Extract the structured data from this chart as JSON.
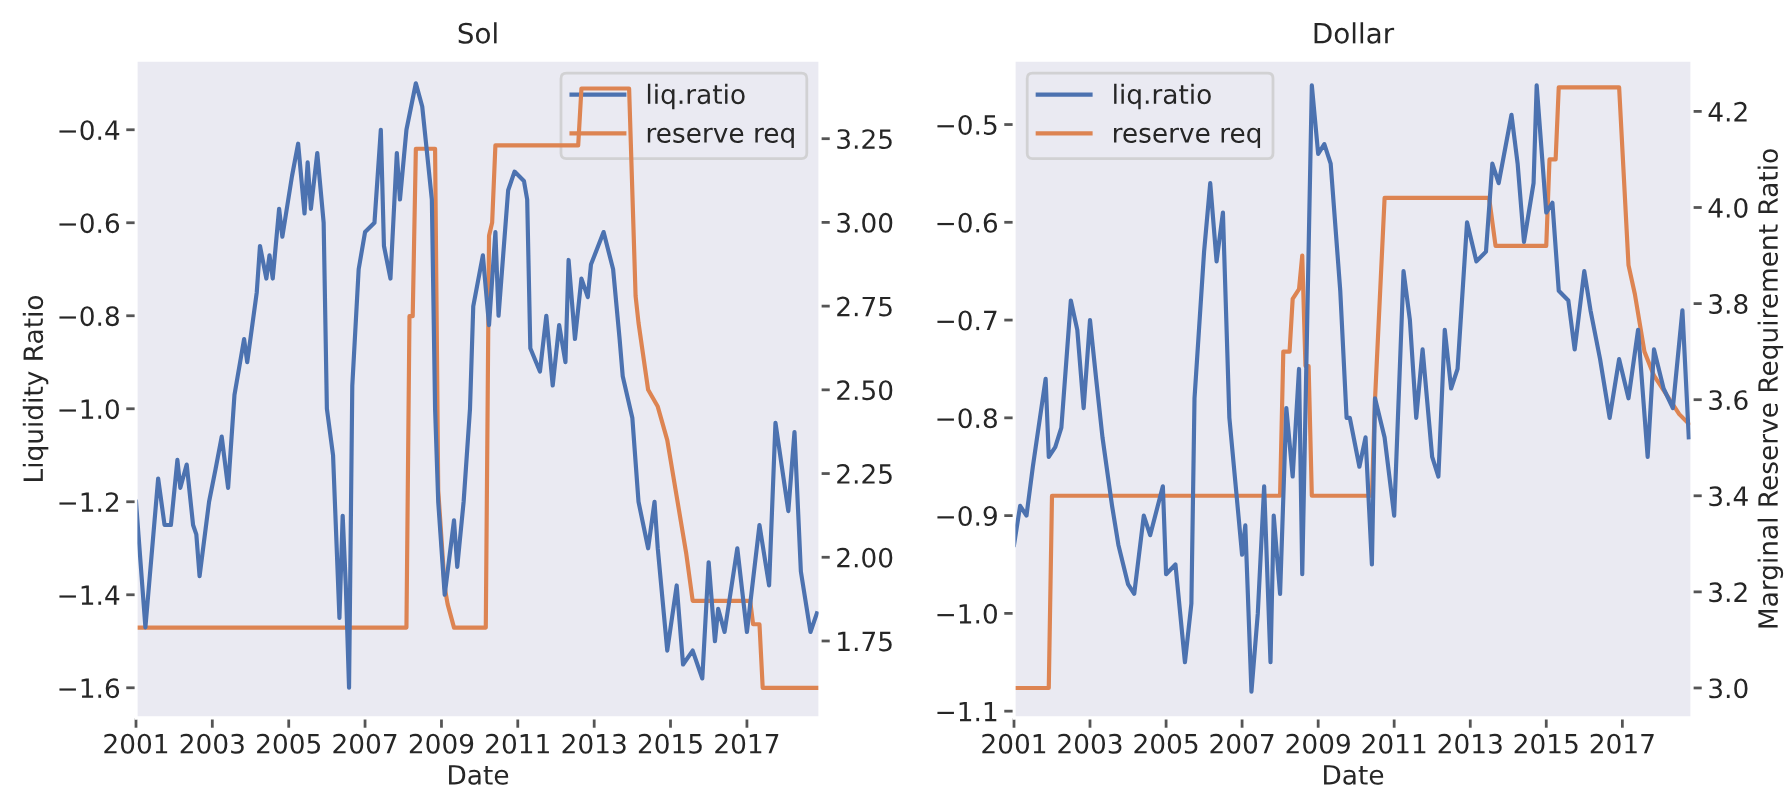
{
  "chart_data": [
    {
      "type": "line",
      "title": "Sol",
      "xlabel": "Date",
      "ylabel": "Liquidity Ratio",
      "legend": "top right",
      "grid": false,
      "xlim": [
        "2001-01",
        "2018-12"
      ],
      "xticks": [
        "2001",
        "2003",
        "2005",
        "2007",
        "2009",
        "2011",
        "2013",
        "2015",
        "2017"
      ],
      "ylim": [
        -1.665,
        -0.25
      ],
      "yticks": [
        {
          "value": -1.6,
          "label": "−1.6"
        },
        {
          "value": -1.4,
          "label": "−1.4"
        },
        {
          "value": -1.2,
          "label": "−1.2"
        },
        {
          "value": -1.0,
          "label": "−1.0"
        },
        {
          "value": -0.8,
          "label": "−0.8"
        },
        {
          "value": -0.6,
          "label": "−0.6"
        },
        {
          "value": -0.4,
          "label": "−0.4"
        }
      ],
      "y2lim": [
        1.52,
        3.485
      ],
      "y2ticks": [
        {
          "value": 1.75,
          "label": "1.75"
        },
        {
          "value": 2.0,
          "label": "2.00"
        },
        {
          "value": 2.25,
          "label": "2.25"
        },
        {
          "value": 2.5,
          "label": "2.50"
        },
        {
          "value": 2.75,
          "label": "2.75"
        },
        {
          "value": 3.0,
          "label": "3.00"
        },
        {
          "value": 3.25,
          "label": "3.25"
        }
      ],
      "series": [
        {
          "name": "liq.ratio",
          "color": "#4c72b0",
          "x": [
            "2001-01",
            "2001-04",
            "2001-08",
            "2001-10",
            "2001-12",
            "2002-02",
            "2002-03",
            "2002-05",
            "2002-07",
            "2002-08",
            "2002-09",
            "2002-12",
            "2003-02",
            "2003-04",
            "2003-06",
            "2003-08",
            "2003-11",
            "2003-12",
            "2004-03",
            "2004-04",
            "2004-06",
            "2004-07",
            "2004-08",
            "2004-10",
            "2004-11",
            "2005-02",
            "2005-04",
            "2005-06",
            "2005-07",
            "2005-08",
            "2005-10",
            "2005-12",
            "2006-01",
            "2006-03",
            "2006-05",
            "2006-06",
            "2006-07",
            "2006-08",
            "2006-09",
            "2006-11",
            "2007-01",
            "2007-04",
            "2007-06",
            "2007-07",
            "2007-09",
            "2007-11",
            "2007-12",
            "2008-02",
            "2008-05",
            "2008-07",
            "2008-10",
            "2008-11",
            "2008-12",
            "2009-02",
            "2009-05",
            "2009-06",
            "2009-08",
            "2009-10",
            "2009-11",
            "2010-02",
            "2010-04",
            "2010-06",
            "2010-07",
            "2010-10",
            "2010-12",
            "2011-03",
            "2011-04",
            "2011-05",
            "2011-08",
            "2011-10",
            "2011-12",
            "2012-02",
            "2012-04",
            "2012-05",
            "2012-07",
            "2012-09",
            "2012-11",
            "2012-12",
            "2013-04",
            "2013-07",
            "2013-09",
            "2013-10",
            "2014-01",
            "2014-03",
            "2014-06",
            "2014-08",
            "2014-09",
            "2014-12",
            "2015-03",
            "2015-05",
            "2015-08",
            "2015-11",
            "2016-01",
            "2016-03",
            "2016-04",
            "2016-06",
            "2016-10",
            "2017-01",
            "2017-05",
            "2017-08",
            "2017-10",
            "2018-02",
            "2018-04",
            "2018-06",
            "2018-09",
            "2018-11"
          ],
          "values": [
            -1.2,
            -1.47,
            -1.15,
            -1.25,
            -1.25,
            -1.11,
            -1.17,
            -1.12,
            -1.25,
            -1.27,
            -1.36,
            -1.2,
            -1.13,
            -1.06,
            -1.17,
            -0.97,
            -0.85,
            -0.9,
            -0.75,
            -0.65,
            -0.72,
            -0.67,
            -0.72,
            -0.57,
            -0.63,
            -0.5,
            -0.43,
            -0.58,
            -0.47,
            -0.57,
            -0.45,
            -0.6,
            -1.0,
            -1.1,
            -1.45,
            -1.23,
            -1.38,
            -1.6,
            -0.95,
            -0.7,
            -0.62,
            -0.6,
            -0.4,
            -0.65,
            -0.72,
            -0.45,
            -0.55,
            -0.4,
            -0.3,
            -0.35,
            -0.55,
            -1.0,
            -1.2,
            -1.4,
            -1.24,
            -1.34,
            -1.2,
            -1.0,
            -0.78,
            -0.67,
            -0.82,
            -0.62,
            -0.8,
            -0.53,
            -0.49,
            -0.51,
            -0.55,
            -0.87,
            -0.92,
            -0.8,
            -0.95,
            -0.82,
            -0.9,
            -0.68,
            -0.85,
            -0.72,
            -0.76,
            -0.69,
            -0.62,
            -0.7,
            -0.85,
            -0.93,
            -1.02,
            -1.2,
            -1.3,
            -1.2,
            -1.3,
            -1.52,
            -1.38,
            -1.55,
            -1.52,
            -1.58,
            -1.33,
            -1.5,
            -1.43,
            -1.48,
            -1.3,
            -1.48,
            -1.25,
            -1.38,
            -1.03,
            -1.22,
            -1.05,
            -1.35,
            -1.48,
            -1.44
          ]
        },
        {
          "name": "reserve req",
          "color": "#dd8452",
          "axis": "y2",
          "x": [
            "2001-01",
            "2008-02",
            "2008-03",
            "2008-04",
            "2008-05",
            "2008-11",
            "2008-12",
            "2009-02",
            "2009-03",
            "2009-05",
            "2010-03",
            "2010-04",
            "2010-05",
            "2010-06",
            "2012-08",
            "2012-09",
            "2013-12",
            "2014-02",
            "2014-03",
            "2014-06",
            "2014-09",
            "2014-12",
            "2015-06",
            "2015-08",
            "2017-02",
            "2017-03",
            "2017-05",
            "2017-06",
            "2018-11"
          ],
          "values": [
            1.79,
            1.79,
            2.72,
            2.72,
            3.22,
            3.22,
            2.2,
            1.91,
            1.86,
            1.79,
            1.79,
            2.96,
            3.0,
            3.23,
            3.23,
            3.4,
            3.4,
            2.78,
            2.7,
            2.5,
            2.45,
            2.35,
            2.01,
            1.87,
            1.87,
            1.8,
            1.8,
            1.61,
            1.61
          ]
        }
      ]
    },
    {
      "type": "line",
      "title": "Dollar",
      "xlabel": "Date",
      "y2label": "Marginal Reserve Requirement Ratio",
      "legend": "top left",
      "grid": false,
      "xlim": [
        "2001-01",
        "2018-11"
      ],
      "xticks": [
        "2001",
        "2003",
        "2005",
        "2007",
        "2009",
        "2011",
        "2013",
        "2015",
        "2017"
      ],
      "ylim": [
        -1.107,
        -0.434
      ],
      "yticks": [
        {
          "value": -1.1,
          "label": "−1.1"
        },
        {
          "value": -1.0,
          "label": "−1.0"
        },
        {
          "value": -0.9,
          "label": "−0.9"
        },
        {
          "value": -0.8,
          "label": "−0.8"
        },
        {
          "value": -0.7,
          "label": "−0.7"
        },
        {
          "value": -0.6,
          "label": "−0.6"
        },
        {
          "value": -0.5,
          "label": "−0.5"
        }
      ],
      "y2lim": [
        2.9375,
        4.307
      ],
      "y2ticks": [
        {
          "value": 3.0,
          "label": "3.0"
        },
        {
          "value": 3.2,
          "label": "3.2"
        },
        {
          "value": 3.4,
          "label": "3.4"
        },
        {
          "value": 3.6,
          "label": "3.6"
        },
        {
          "value": 3.8,
          "label": "3.8"
        },
        {
          "value": 4.0,
          "label": "4.0"
        },
        {
          "value": 4.2,
          "label": "4.2"
        }
      ],
      "series": [
        {
          "name": "liq.ratio",
          "color": "#4c72b0",
          "x": [
            "2001-01",
            "2001-03",
            "2001-05",
            "2001-07",
            "2001-11",
            "2001-12",
            "2002-02",
            "2002-04",
            "2002-07",
            "2002-09",
            "2002-11",
            "2003-01",
            "2003-03",
            "2003-05",
            "2003-08",
            "2003-10",
            "2004-01",
            "2004-03",
            "2004-06",
            "2004-08",
            "2004-12",
            "2005-01",
            "2005-04",
            "2005-07",
            "2005-09",
            "2005-10",
            "2006-01",
            "2006-03",
            "2006-05",
            "2006-07",
            "2006-09",
            "2007-01",
            "2007-02",
            "2007-04",
            "2007-06",
            "2007-08",
            "2007-10",
            "2007-11",
            "2008-01",
            "2008-03",
            "2008-05",
            "2008-07",
            "2008-08",
            "2008-11",
            "2009-01",
            "2009-03",
            "2009-05",
            "2009-08",
            "2009-10",
            "2009-11",
            "2010-02",
            "2010-04",
            "2010-06",
            "2010-07",
            "2010-10",
            "2011-01",
            "2011-04",
            "2011-06",
            "2011-08",
            "2011-10",
            "2012-01",
            "2012-03",
            "2012-05",
            "2012-07",
            "2012-09",
            "2012-12",
            "2013-03",
            "2013-06",
            "2013-08",
            "2013-10",
            "2014-02",
            "2014-04",
            "2014-06",
            "2014-09",
            "2014-10",
            "2015-01",
            "2015-03",
            "2015-05",
            "2015-08",
            "2015-10",
            "2016-01",
            "2016-03",
            "2016-06",
            "2016-09",
            "2016-12",
            "2017-03",
            "2017-06",
            "2017-09",
            "2017-11",
            "2018-02",
            "2018-05",
            "2018-08",
            "2018-10"
          ],
          "values": [
            -0.93,
            -0.89,
            -0.9,
            -0.85,
            -0.76,
            -0.84,
            -0.83,
            -0.81,
            -0.68,
            -0.71,
            -0.79,
            -0.7,
            -0.76,
            -0.82,
            -0.89,
            -0.93,
            -0.97,
            -0.98,
            -0.9,
            -0.92,
            -0.87,
            -0.96,
            -0.95,
            -1.05,
            -0.99,
            -0.78,
            -0.63,
            -0.56,
            -0.64,
            -0.59,
            -0.8,
            -0.94,
            -0.91,
            -1.08,
            -1.0,
            -0.87,
            -1.05,
            -0.9,
            -0.98,
            -0.79,
            -0.86,
            -0.75,
            -0.96,
            -0.46,
            -0.53,
            -0.52,
            -0.54,
            -0.67,
            -0.8,
            -0.8,
            -0.85,
            -0.82,
            -0.95,
            -0.78,
            -0.82,
            -0.9,
            -0.65,
            -0.7,
            -0.8,
            -0.73,
            -0.84,
            -0.86,
            -0.71,
            -0.77,
            -0.75,
            -0.6,
            -0.64,
            -0.63,
            -0.54,
            -0.56,
            -0.49,
            -0.54,
            -0.62,
            -0.56,
            -0.46,
            -0.59,
            -0.58,
            -0.67,
            -0.68,
            -0.73,
            -0.65,
            -0.69,
            -0.74,
            -0.8,
            -0.74,
            -0.78,
            -0.71,
            -0.84,
            -0.73,
            -0.77,
            -0.79,
            -0.69,
            -0.82
          ]
        },
        {
          "name": "reserve req",
          "color": "#dd8452",
          "axis": "y2",
          "x": [
            "2001-01",
            "2001-12",
            "2002-01",
            "2008-01",
            "2008-02",
            "2008-04",
            "2008-05",
            "2008-07",
            "2008-08",
            "2008-09",
            "2008-10",
            "2008-11",
            "2010-06",
            "2010-07",
            "2010-10",
            "2013-07",
            "2013-09",
            "2015-01",
            "2015-02",
            "2015-04",
            "2015-05",
            "2016-12",
            "2017-03",
            "2017-05",
            "2017-08",
            "2017-11",
            "2018-04",
            "2018-07",
            "2018-10"
          ],
          "values": [
            3.0,
            3.0,
            3.4,
            3.4,
            3.7,
            3.7,
            3.81,
            3.83,
            3.9,
            3.67,
            3.67,
            3.4,
            3.4,
            3.6,
            4.02,
            4.02,
            3.92,
            3.92,
            4.1,
            4.1,
            4.25,
            4.25,
            3.88,
            3.82,
            3.7,
            3.65,
            3.6,
            3.57,
            3.55
          ]
        }
      ]
    }
  ]
}
